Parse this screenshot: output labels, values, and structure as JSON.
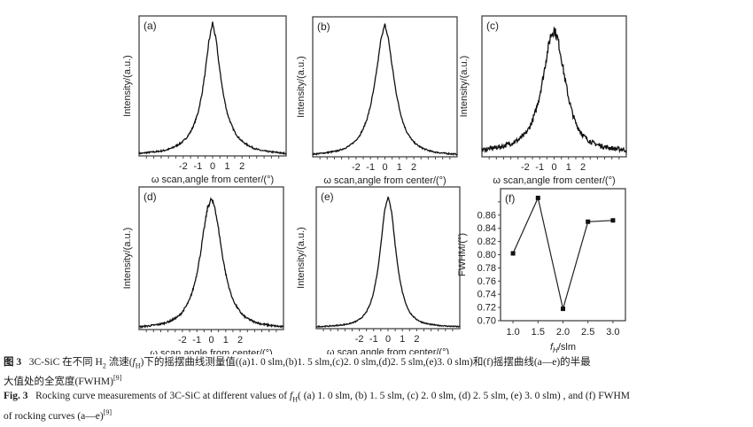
{
  "figure": {
    "shared_xlabel": "ω scan,angle from center/(°)",
    "shared_ylabel": "Intensity/(a.u.)"
  },
  "chart_data": [
    {
      "id": "a",
      "type": "line",
      "panel_label": "(a)",
      "title": "",
      "xlabel": "ω scan,angle from center/(°)",
      "ylabel": "Intensity/(a.u.)",
      "xlim": [
        -5,
        5
      ],
      "xticks": [
        -2,
        -1,
        0,
        1,
        2
      ],
      "xtick_labels": [
        "-2",
        "-1",
        "0",
        "1",
        "2"
      ],
      "ylim": [
        0,
        1.05
      ],
      "yticks": [],
      "condition": "f_H = 1.0 slm",
      "x": [
        -5,
        -4.75,
        -4.5,
        -4.25,
        -4,
        -3.75,
        -3.5,
        -3.25,
        -3,
        -2.75,
        -2.5,
        -2.25,
        -2,
        -1.75,
        -1.5,
        -1.25,
        -1,
        -0.75,
        -0.5,
        -0.25,
        0,
        0.25,
        0.5,
        0.75,
        1,
        1.25,
        1.5,
        1.75,
        2,
        2.25,
        2.5,
        2.75,
        3,
        3.25,
        3.5,
        3.75,
        4,
        4.25,
        4.5,
        4.75,
        5
      ],
      "y": [
        0.02,
        0.02,
        0.025,
        0.027,
        0.03,
        0.033,
        0.037,
        0.042,
        0.05,
        0.06,
        0.075,
        0.09,
        0.11,
        0.14,
        0.18,
        0.24,
        0.32,
        0.45,
        0.63,
        0.86,
        1.0,
        0.86,
        0.63,
        0.45,
        0.32,
        0.24,
        0.18,
        0.14,
        0.11,
        0.09,
        0.075,
        0.06,
        0.05,
        0.042,
        0.037,
        0.033,
        0.03,
        0.027,
        0.025,
        0.02,
        0.02
      ]
    },
    {
      "id": "b",
      "type": "line",
      "panel_label": "(b)",
      "title": "",
      "xlabel": "ω scan,angle from center/(°)",
      "ylabel": "Intensity/(a.u.)",
      "xlim": [
        -5,
        5
      ],
      "xticks": [
        -2,
        -1,
        0,
        1,
        2
      ],
      "xtick_labels": [
        "-2",
        "-1",
        "0",
        "1",
        "2"
      ],
      "ylim": [
        0,
        1.05
      ],
      "yticks": [],
      "condition": "f_H = 1.5 slm",
      "x": [
        -5,
        -4.75,
        -4.5,
        -4.25,
        -4,
        -3.75,
        -3.5,
        -3.25,
        -3,
        -2.75,
        -2.5,
        -2.25,
        -2,
        -1.75,
        -1.5,
        -1.25,
        -1,
        -0.75,
        -0.5,
        -0.25,
        0,
        0.25,
        0.5,
        0.75,
        1,
        1.25,
        1.5,
        1.75,
        2,
        2.25,
        2.5,
        2.75,
        3,
        3.25,
        3.5,
        3.75,
        4,
        4.25,
        4.5,
        4.75,
        5
      ],
      "y": [
        0.02,
        0.022,
        0.025,
        0.028,
        0.032,
        0.036,
        0.04,
        0.046,
        0.055,
        0.066,
        0.08,
        0.1,
        0.125,
        0.16,
        0.21,
        0.28,
        0.38,
        0.52,
        0.7,
        0.9,
        0.99,
        0.88,
        0.68,
        0.5,
        0.36,
        0.26,
        0.19,
        0.145,
        0.11,
        0.088,
        0.07,
        0.058,
        0.048,
        0.04,
        0.035,
        0.031,
        0.028,
        0.025,
        0.023,
        0.021,
        0.02
      ]
    },
    {
      "id": "c",
      "type": "line",
      "panel_label": "(c)",
      "title": "",
      "xlabel": "ω scan,angle from center/(°)",
      "ylabel": "Intensity/(a.u.)",
      "xlim": [
        -5,
        5
      ],
      "xticks": [
        -2,
        -1,
        0,
        1,
        2
      ],
      "xtick_labels": [
        "-2",
        "-1",
        "0",
        "1",
        "2"
      ],
      "ylim": [
        0,
        1.05
      ],
      "yticks": [],
      "condition": "f_H = 2.0 slm",
      "x": [
        -5,
        -4.75,
        -4.5,
        -4.25,
        -4,
        -3.75,
        -3.5,
        -3.25,
        -3,
        -2.75,
        -2.5,
        -2.25,
        -2,
        -1.75,
        -1.5,
        -1.25,
        -1,
        -0.75,
        -0.5,
        -0.25,
        0,
        0.25,
        0.5,
        0.75,
        1,
        1.25,
        1.5,
        1.75,
        2,
        2.25,
        2.5,
        2.75,
        3,
        3.25,
        3.5,
        3.75,
        4,
        4.25,
        4.5,
        4.75,
        5
      ],
      "y": [
        0.05,
        0.055,
        0.06,
        0.065,
        0.07,
        0.075,
        0.08,
        0.09,
        0.1,
        0.11,
        0.125,
        0.145,
        0.17,
        0.21,
        0.27,
        0.35,
        0.46,
        0.6,
        0.76,
        0.9,
        0.95,
        0.88,
        0.74,
        0.58,
        0.44,
        0.33,
        0.25,
        0.2,
        0.16,
        0.135,
        0.115,
        0.1,
        0.09,
        0.082,
        0.075,
        0.07,
        0.065,
        0.06,
        0.057,
        0.054,
        0.05
      ]
    },
    {
      "id": "d",
      "type": "line",
      "panel_label": "(d)",
      "title": "",
      "xlabel": "ω scan,angle from center/(°)",
      "ylabel": "Intensity/(a.u.)",
      "xlim": [
        -5,
        5
      ],
      "xticks": [
        -2,
        -1,
        0,
        1,
        2
      ],
      "xtick_labels": [
        "-2",
        "-1",
        "0",
        "1",
        "2"
      ],
      "ylim": [
        0,
        1.05
      ],
      "yticks": [],
      "condition": "f_H = 2.5 slm",
      "x": [
        -5,
        -4.75,
        -4.5,
        -4.25,
        -4,
        -3.75,
        -3.5,
        -3.25,
        -3,
        -2.75,
        -2.5,
        -2.25,
        -2,
        -1.75,
        -1.5,
        -1.25,
        -1,
        -0.75,
        -0.5,
        -0.25,
        0,
        0.25,
        0.5,
        0.75,
        1,
        1.25,
        1.5,
        1.75,
        2,
        2.25,
        2.5,
        2.75,
        3,
        3.25,
        3.5,
        3.75,
        4,
        4.25,
        4.5,
        4.75,
        5
      ],
      "y": [
        0.02,
        0.022,
        0.025,
        0.028,
        0.032,
        0.036,
        0.041,
        0.048,
        0.056,
        0.068,
        0.082,
        0.1,
        0.13,
        0.17,
        0.22,
        0.3,
        0.41,
        0.56,
        0.74,
        0.9,
        0.96,
        0.9,
        0.74,
        0.56,
        0.41,
        0.3,
        0.22,
        0.17,
        0.13,
        0.1,
        0.082,
        0.068,
        0.056,
        0.048,
        0.041,
        0.036,
        0.032,
        0.028,
        0.025,
        0.022,
        0.02
      ]
    },
    {
      "id": "e",
      "type": "line",
      "panel_label": "(e)",
      "title": "",
      "xlabel": "ω scan,angle from center/(°)",
      "ylabel": "Intensity/(a.u.)",
      "xlim": [
        -5,
        5
      ],
      "xticks": [
        -2,
        -1,
        0,
        1,
        2
      ],
      "xtick_labels": [
        "-2",
        "-1",
        "0",
        "1",
        "2"
      ],
      "ylim": [
        0,
        1.05
      ],
      "yticks": [],
      "condition": "f_H = 3.0 slm",
      "x": [
        -5,
        -4.75,
        -4.5,
        -4.25,
        -4,
        -3.75,
        -3.5,
        -3.25,
        -3,
        -2.75,
        -2.5,
        -2.25,
        -2,
        -1.75,
        -1.5,
        -1.25,
        -1,
        -0.75,
        -0.5,
        -0.25,
        0,
        0.25,
        0.5,
        0.75,
        1,
        1.25,
        1.5,
        1.75,
        2,
        2.25,
        2.5,
        2.75,
        3,
        3.25,
        3.5,
        3.75,
        4,
        4.25,
        4.5,
        4.75,
        5
      ],
      "y": [
        0.015,
        0.016,
        0.017,
        0.018,
        0.02,
        0.022,
        0.024,
        0.027,
        0.031,
        0.036,
        0.043,
        0.053,
        0.068,
        0.09,
        0.125,
        0.18,
        0.27,
        0.41,
        0.62,
        0.87,
        0.98,
        0.87,
        0.62,
        0.41,
        0.27,
        0.18,
        0.125,
        0.09,
        0.068,
        0.053,
        0.043,
        0.036,
        0.031,
        0.027,
        0.024,
        0.022,
        0.02,
        0.018,
        0.017,
        0.016,
        0.015
      ]
    },
    {
      "id": "f",
      "type": "line",
      "panel_label": "(f)",
      "title": "",
      "xlabel": "f_H/slm",
      "ylabel": "FWHM/(°)",
      "xlim": [
        0.75,
        3.25
      ],
      "xticks": [
        1.0,
        1.5,
        2.0,
        2.5,
        3.0
      ],
      "xtick_labels": [
        "1.0",
        "1.5",
        "2.0",
        "2.5",
        "3.0"
      ],
      "ylim": [
        0.7,
        0.9
      ],
      "yticks": [
        0.7,
        0.72,
        0.74,
        0.76,
        0.78,
        0.8,
        0.82,
        0.84,
        0.86,
        0.88
      ],
      "ytick_labels": [
        "0.70",
        "0.72",
        "0.74",
        "0.76",
        "0.78",
        "0.80",
        "0.82",
        "0.84",
        "0.86",
        ""
      ],
      "marker": "square",
      "x": [
        1.0,
        1.5,
        2.0,
        2.5,
        3.0
      ],
      "y": [
        0.802,
        0.886,
        0.718,
        0.85,
        0.852
      ]
    }
  ],
  "caption": {
    "zh_prefix": "图 3",
    "zh_text_1": "3C-SiC 在不同 H",
    "zh_sub_2": "2",
    "zh_text_2": " 流速(",
    "zh_f": "f",
    "zh_sub_H": "H",
    "zh_text_3": ")下的摇摆曲线测量值((a)1. 0 slm,(b)1. 5 slm,(c)2. 0 slm,(d)2. 5 slm,(e)3. 0 slm)和(f)摇摆曲线(a—e)的半最",
    "zh_line2": "大值处的全宽度(FWHM)",
    "zh_ref": "[9]",
    "en_prefix": "Fig. 3",
    "en_text_1": "Rocking curve measurements of 3C-SiC at different values of ",
    "en_f": "f",
    "en_sub_H": "H",
    "en_text_2": "( (a) 1. 0 slm, (b) 1. 5 slm, (c) 2. 0 slm, (d) 2. 5 slm, (e) 3. 0 slm) , and (f) FWHM",
    "en_line2": "of rocking curves (a—e)",
    "en_ref": "[9]"
  }
}
